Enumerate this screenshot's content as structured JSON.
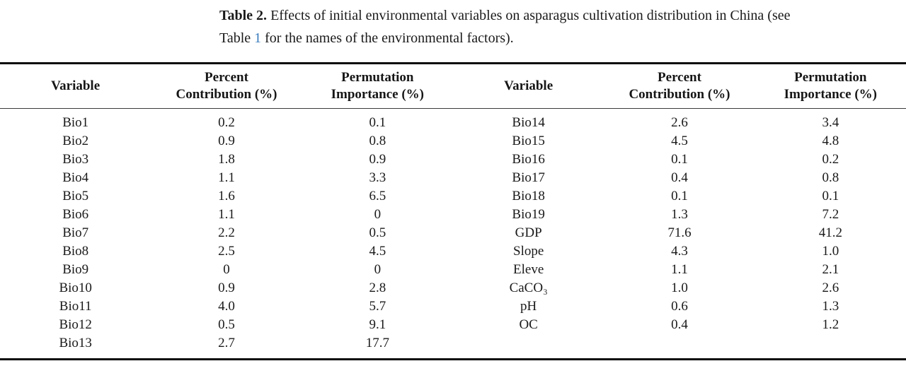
{
  "page": {
    "background_color": "#ffffff",
    "text_color": "#1a1a1a",
    "rule_color": "#0a0a0a",
    "link_color": "#3a7cbd"
  },
  "caption": {
    "line1_bold": "Table 2.",
    "line1_rest": " Effects of initial environmental variables on asparagus cultivation distribution in China (see",
    "line2_pre": "Table ",
    "line2_link": "1",
    "line2_post": " for the names of the environmental factors)."
  },
  "table": {
    "headers": [
      {
        "line1": "Variable",
        "line2": ""
      },
      {
        "line1": "Percent",
        "line2": "Contribution (%)"
      },
      {
        "line1": "Permutation",
        "line2": "Importance (%)"
      },
      {
        "line1": "Variable",
        "line2": ""
      },
      {
        "line1": "Percent",
        "line2": "Contribution (%)"
      },
      {
        "line1": "Permutation",
        "line2": "Importance (%)"
      }
    ],
    "rows": [
      [
        "Bio1",
        "0.2",
        "0.1",
        "Bio14",
        "2.6",
        "3.4"
      ],
      [
        "Bio2",
        "0.9",
        "0.8",
        "Bio15",
        "4.5",
        "4.8"
      ],
      [
        "Bio3",
        "1.8",
        "0.9",
        "Bio16",
        "0.1",
        "0.2"
      ],
      [
        "Bio4",
        "1.1",
        "3.3",
        "Bio17",
        "0.4",
        "0.8"
      ],
      [
        "Bio5",
        "1.6",
        "6.5",
        "Bio18",
        "0.1",
        "0.1"
      ],
      [
        "Bio6",
        "1.1",
        "0",
        "Bio19",
        "1.3",
        "7.2"
      ],
      [
        "Bio7",
        "2.2",
        "0.5",
        "GDP",
        "71.6",
        "41.2"
      ],
      [
        "Bio8",
        "2.5",
        "4.5",
        "Slope",
        "4.3",
        "1.0"
      ],
      [
        "Bio9",
        "0",
        "0",
        "Eleve",
        "1.1",
        "2.1"
      ],
      [
        "Bio10",
        "0.9",
        "2.8",
        "CaCO₃",
        "1.0",
        "2.6"
      ],
      [
        "Bio11",
        "4.0",
        "5.7",
        "pH",
        "0.6",
        "1.3"
      ],
      [
        "Bio12",
        "0.5",
        "9.1",
        "OC",
        "0.4",
        "1.2"
      ],
      [
        "Bio13",
        "2.7",
        "17.7",
        "",
        "",
        ""
      ]
    ]
  }
}
